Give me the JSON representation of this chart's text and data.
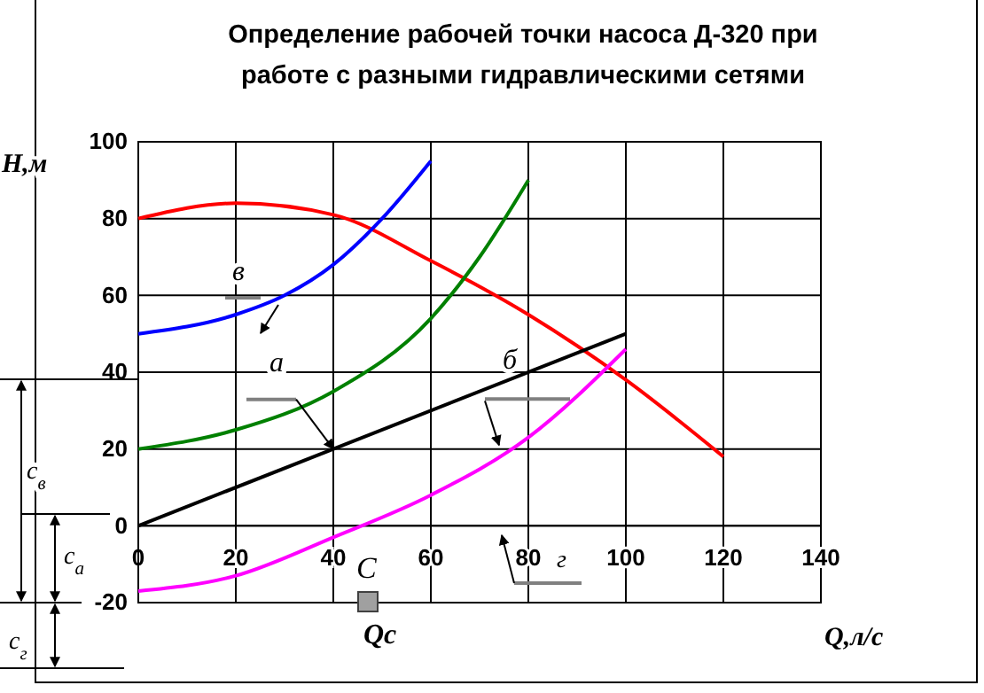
{
  "chart_data": {
    "type": "line",
    "title": "Определение  рабочей точки насоса Д-320 при работе с разными гидравлическими сетями",
    "xlabel": "Q,л/с",
    "ylabel": "H,м",
    "series": [
      {
        "color": "#ff0000",
        "x": [
          0,
          20,
          40,
          60,
          80,
          100,
          120
        ],
        "values": [
          80,
          84,
          81,
          69,
          55,
          38,
          18
        ]
      },
      {
        "color": "#0000ff",
        "x": [
          0,
          20,
          30,
          40,
          50,
          60
        ],
        "values": [
          50,
          55,
          60,
          68,
          80,
          95
        ]
      },
      {
        "color": "#008000",
        "x": [
          0,
          20,
          40,
          60,
          70,
          80
        ],
        "values": [
          20,
          25,
          35,
          54,
          70,
          90
        ]
      },
      {
        "color": "#000000",
        "x": [
          0,
          100
        ],
        "values": [
          0,
          50
        ]
      },
      {
        "color": "#ff00ff",
        "x": [
          0,
          20,
          40,
          60,
          80,
          100
        ],
        "values": [
          -17,
          -13,
          -3,
          8,
          23,
          46
        ]
      }
    ],
    "xlim": [
      0,
      140
    ],
    "xticks": [
      0,
      20,
      40,
      60,
      80,
      100,
      120,
      140
    ],
    "ylim": [
      -20,
      100
    ],
    "yticks": [
      -20,
      0,
      20,
      40,
      60,
      80,
      100
    ],
    "grid": true,
    "marker": "none",
    "line_style": "solid",
    "annotations": [
      "в",
      {
        "text": "а",
        "x": 40,
        "y": 20
      },
      {
        "text": "б",
        "x": 74,
        "y": 21
      },
      "г",
      "C",
      "Qc",
      "c$_{в}$",
      "c$_{а}$",
      "c$_{г}$"
    ]
  }
}
